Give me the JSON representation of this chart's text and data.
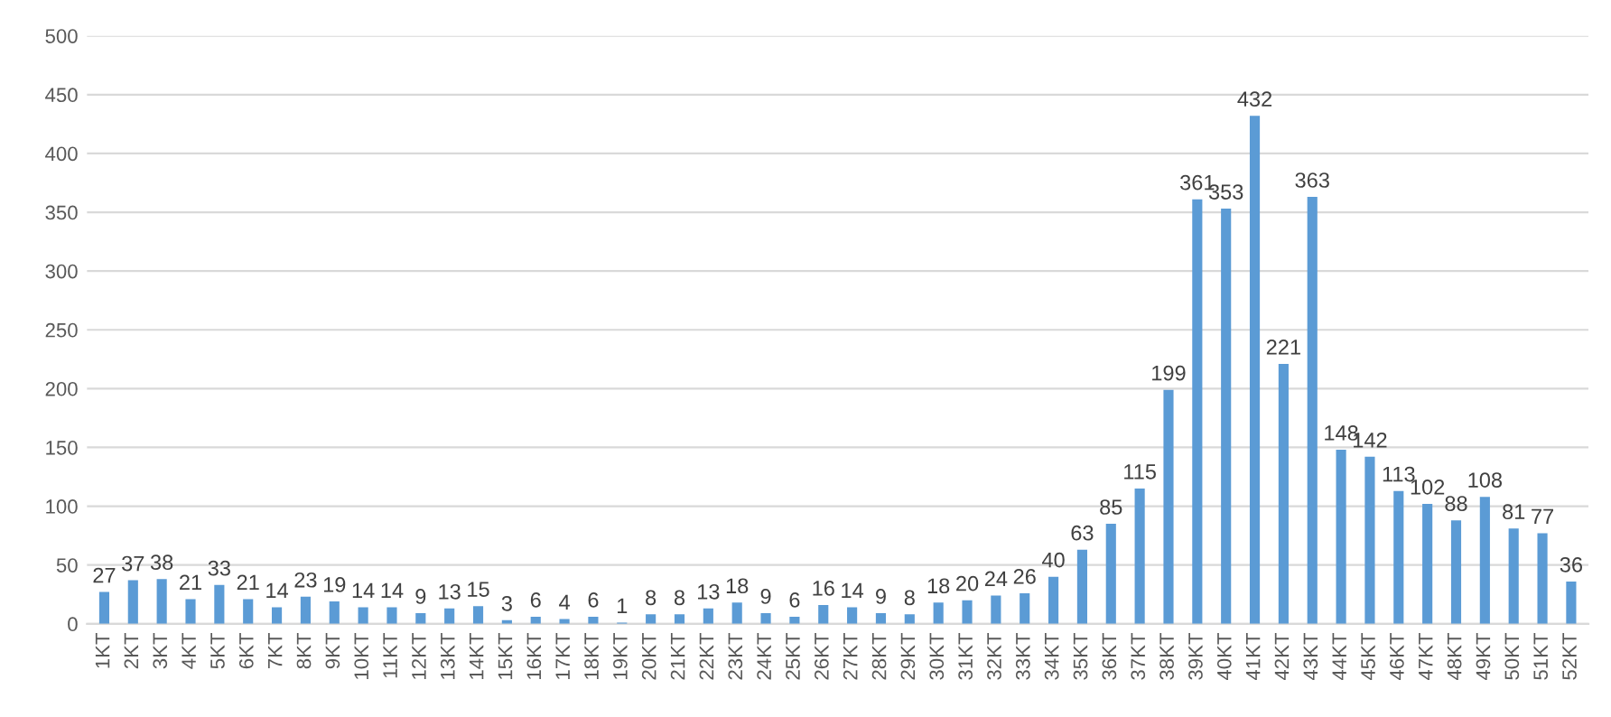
{
  "chart_data": {
    "type": "bar",
    "categories": [
      "1KT",
      "2KT",
      "3KT",
      "4KT",
      "5KT",
      "6KT",
      "7KT",
      "8KT",
      "9KT",
      "10KT",
      "11KT",
      "12KT",
      "13KT",
      "14KT",
      "15KT",
      "16KT",
      "17KT",
      "18KT",
      "19KT",
      "20KT",
      "21KT",
      "22KT",
      "23KT",
      "24KT",
      "25KT",
      "26KT",
      "27KT",
      "28KT",
      "29KT",
      "30KT",
      "31KT",
      "32KT",
      "33KT",
      "34KT",
      "35KT",
      "36KT",
      "37KT",
      "38KT",
      "39KT",
      "40KT",
      "41KT",
      "42KT",
      "43KT",
      "44KT",
      "45KT",
      "46KT",
      "47KT",
      "48KT",
      "49KT",
      "50KT",
      "51KT",
      "52KT"
    ],
    "values": [
      27,
      37,
      38,
      21,
      33,
      21,
      14,
      23,
      19,
      14,
      14,
      9,
      13,
      15,
      3,
      6,
      4,
      6,
      1,
      8,
      8,
      13,
      18,
      9,
      6,
      16,
      14,
      9,
      8,
      18,
      20,
      24,
      26,
      40,
      63,
      85,
      115,
      199,
      361,
      353,
      432,
      221,
      363,
      148,
      142,
      113,
      102,
      88,
      108,
      81,
      77,
      36
    ],
    "color": "#5b9bd5",
    "ylim": [
      0,
      500
    ],
    "yticks": [
      0,
      50,
      100,
      150,
      200,
      250,
      300,
      350,
      400,
      450,
      500
    ],
    "grid": "y",
    "data_labels": true
  }
}
